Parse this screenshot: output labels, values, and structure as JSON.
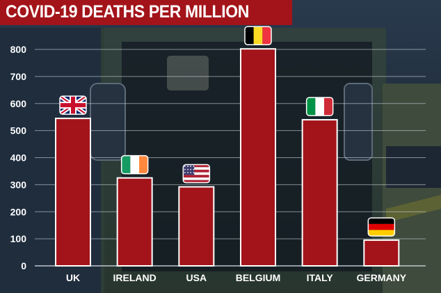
{
  "chart_data": {
    "type": "bar",
    "title": "COVID-19 DEATHS PER MILLION",
    "categories": [
      "UK",
      "IRELAND",
      "USA",
      "BELGIUM",
      "ITALY",
      "GERMANY"
    ],
    "values": [
      545,
      325,
      292,
      802,
      540,
      95
    ],
    "flags": [
      "uk-flag-icon",
      "ireland-flag-icon",
      "usa-flag-icon",
      "belgium-flag-icon",
      "italy-flag-icon",
      "germany-flag-icon"
    ],
    "ylim": [
      0,
      800
    ],
    "yticks": [
      "0",
      "100",
      "200",
      "300",
      "400",
      "500",
      "600",
      "700",
      "800"
    ],
    "xlabel": "",
    "ylabel": "",
    "grid": true
  },
  "colors": {
    "bar": "#a3141a",
    "bar_border": "#ffffff",
    "title_background": "#a3141a",
    "title_text": "#ffffff",
    "tick_text": "#ffffff",
    "gridline": "#cfd6df"
  }
}
